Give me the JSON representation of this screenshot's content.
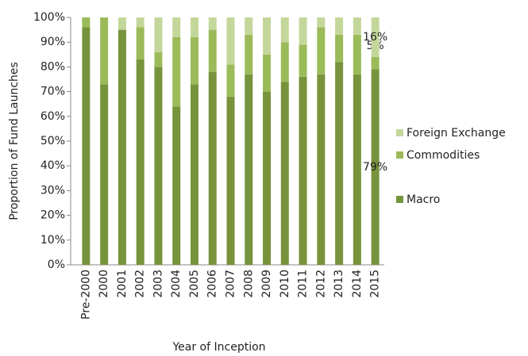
{
  "chart_data": {
    "type": "stacked_bar",
    "xlabel": "Year of Inception",
    "ylabel": "Proportion of Fund Launches",
    "categories": [
      "Pre-2000",
      "2000",
      "2001",
      "2002",
      "2003",
      "2004",
      "2005",
      "2006",
      "2007",
      "2008",
      "2009",
      "2010",
      "2011",
      "2012",
      "2013",
      "2014",
      "2015"
    ],
    "series": [
      {
        "name": "Macro",
        "color": "#77933c",
        "values": [
          96,
          73,
          95,
          83,
          80,
          64,
          73,
          78,
          68,
          77,
          70,
          74,
          76,
          77,
          82,
          77,
          79
        ],
        "value_labels": [
          null,
          null,
          null,
          null,
          null,
          null,
          null,
          null,
          null,
          null,
          null,
          null,
          null,
          null,
          null,
          null,
          "79%"
        ]
      },
      {
        "name": "Commodities",
        "color": "#9bbb59",
        "values": [
          4,
          27,
          0,
          13,
          6,
          28,
          19,
          17,
          13,
          16,
          15,
          16,
          13,
          19,
          11,
          16,
          5
        ],
        "value_labels": [
          null,
          null,
          null,
          null,
          null,
          null,
          null,
          null,
          null,
          null,
          null,
          null,
          null,
          null,
          null,
          null,
          "5%"
        ]
      },
      {
        "name": "Foreign Exchange",
        "color": "#c4d79b",
        "values": [
          0,
          0,
          5,
          4,
          14,
          8,
          8,
          5,
          19,
          7,
          15,
          10,
          11,
          4,
          7,
          7,
          16
        ],
        "value_labels": [
          null,
          null,
          null,
          null,
          null,
          null,
          null,
          null,
          null,
          null,
          null,
          null,
          null,
          null,
          null,
          null,
          "16%"
        ]
      }
    ],
    "ylim": [
      0,
      100
    ],
    "yticks": [
      {
        "value": 0,
        "label": "0%"
      },
      {
        "value": 10,
        "label": "10%"
      },
      {
        "value": 20,
        "label": "20%"
      },
      {
        "value": 30,
        "label": "30%"
      },
      {
        "value": 40,
        "label": "40%"
      },
      {
        "value": 50,
        "label": "50%"
      },
      {
        "value": 60,
        "label": "60%"
      },
      {
        "value": 70,
        "label": "70%"
      },
      {
        "value": 80,
        "label": "80%"
      },
      {
        "value": 90,
        "label": "90%"
      },
      {
        "value": 100,
        "label": "100%"
      }
    ],
    "legend": "right"
  }
}
